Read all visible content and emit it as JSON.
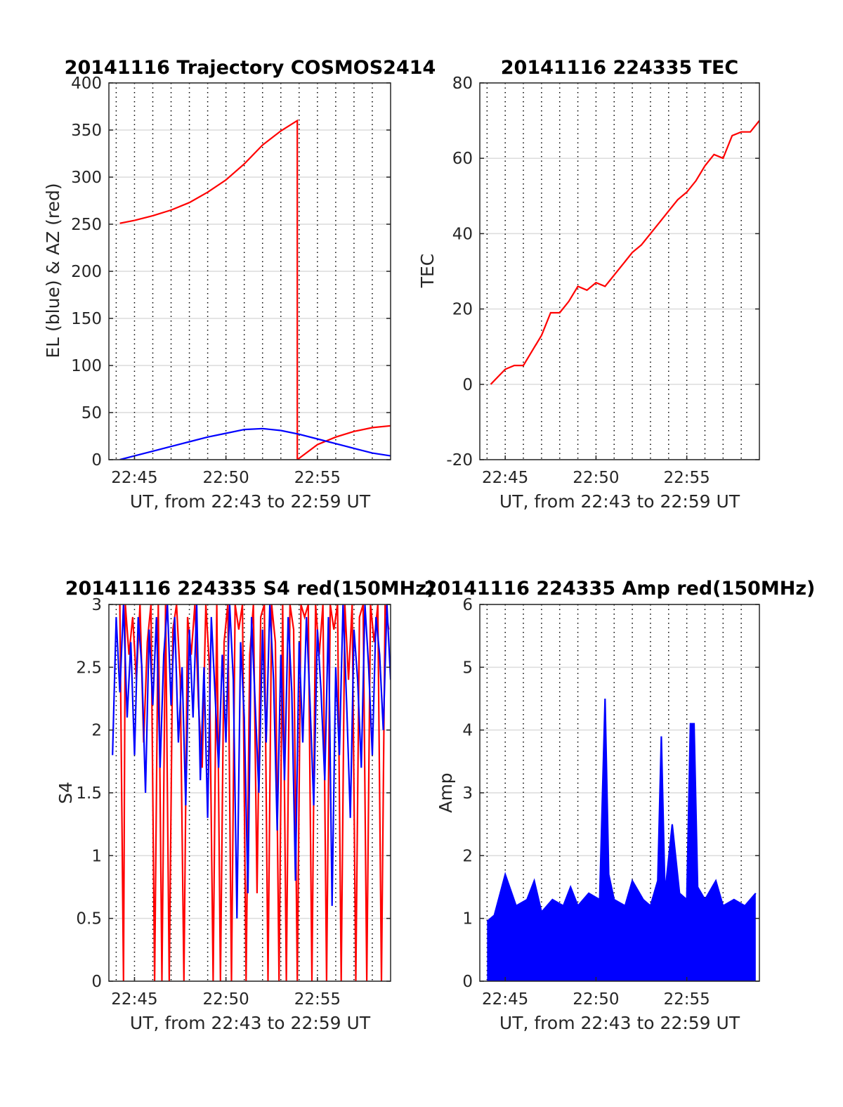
{
  "figure": {
    "background": "#ffffff"
  },
  "chart_data": [
    {
      "type": "line",
      "title": "20141116 Trajectory COSMOS2414",
      "xlabel": "UT, from 22:43 to 22:59 UT",
      "ylabel": "EL (blue) & AZ (red)",
      "x_unit": "minutes after 22:00 UT",
      "xlim": [
        43.6,
        59.0
      ],
      "ylim": [
        0,
        400
      ],
      "yticks": [
        0,
        50,
        100,
        150,
        200,
        250,
        300,
        350,
        400
      ],
      "xticks": [
        45,
        50,
        55
      ],
      "xtick_labels": [
        "22:45",
        "22:50",
        "22:55"
      ],
      "minor_grid_x": [
        44,
        45,
        46,
        47,
        48,
        49,
        50,
        51,
        52,
        53,
        54,
        55,
        56,
        57,
        58
      ],
      "series": [
        {
          "color": "#ff0000",
          "x": [
            44.2,
            45,
            46,
            47,
            48,
            49,
            50,
            51,
            52,
            53,
            53.9,
            53.9,
            55,
            56,
            57,
            58,
            59
          ],
          "values": [
            251,
            254,
            259,
            265,
            273,
            284,
            297,
            314,
            334,
            349,
            360,
            0,
            16,
            24,
            30,
            34,
            36
          ]
        },
        {
          "color": "#0000ff",
          "x": [
            44.2,
            45,
            46,
            47,
            48,
            49,
            50,
            51,
            52,
            53,
            54,
            55,
            56,
            57,
            58,
            59
          ],
          "values": [
            0,
            4,
            9,
            14,
            19,
            24,
            28,
            32,
            33,
            31,
            27,
            22,
            17,
            12,
            7,
            4
          ]
        }
      ]
    },
    {
      "type": "line",
      "title": "20141116 224335 TEC",
      "xlabel": "UT, from 22:43 to 22:59 UT",
      "ylabel": "TEC",
      "x_unit": "minutes after 22:00 UT",
      "xlim": [
        43.6,
        59.0
      ],
      "ylim": [
        -20,
        80
      ],
      "yticks": [
        -20,
        0,
        20,
        40,
        60,
        80
      ],
      "xticks": [
        45,
        50,
        55
      ],
      "xtick_labels": [
        "22:45",
        "22:50",
        "22:55"
      ],
      "minor_grid_x": [
        44,
        45,
        46,
        47,
        48,
        49,
        50,
        51,
        52,
        53,
        54,
        55,
        56,
        57,
        58
      ],
      "series": [
        {
          "color": "#ff0000",
          "x": [
            44.2,
            44.6,
            45,
            45.5,
            46,
            46.5,
            47,
            47.5,
            48,
            48.5,
            49,
            49.5,
            50,
            50.5,
            51,
            51.5,
            52,
            52.5,
            53,
            53.5,
            54,
            54.5,
            55,
            55.5,
            56,
            56.5,
            57,
            57.5,
            58,
            58.5,
            59
          ],
          "values": [
            0,
            2,
            4,
            5,
            5,
            9,
            13,
            19,
            19,
            22,
            26,
            25,
            27,
            26,
            29,
            32,
            35,
            37,
            40,
            43,
            46,
            49,
            51,
            54,
            58,
            61,
            60,
            66,
            67,
            67,
            70
          ]
        }
      ]
    },
    {
      "type": "line",
      "title": "20141116 224335 S4 red(150MHz)",
      "xlabel": "UT, from 22:43 to 22:59 UT",
      "ylabel": "S4",
      "x_unit": "minutes after 22:00 UT",
      "xlim": [
        43.6,
        59.0
      ],
      "ylim": [
        0,
        3
      ],
      "yticks": [
        0,
        0.5,
        1,
        1.5,
        2,
        2.5,
        3
      ],
      "xticks": [
        45,
        50,
        55
      ],
      "xtick_labels": [
        "22:45",
        "22:50",
        "22:55"
      ],
      "minor_grid_x": [
        44,
        45,
        46,
        47,
        48,
        49,
        50,
        51,
        52,
        53,
        54,
        55,
        56,
        57,
        58
      ],
      "series": [
        {
          "color": "#ff0000",
          "x": [
            44.2,
            44.4,
            44.5,
            44.7,
            44.9,
            45.1,
            45.3,
            45.5,
            45.7,
            45.9,
            46.1,
            46.3,
            46.5,
            46.7,
            46.9,
            47.1,
            47.3,
            47.5,
            47.7,
            47.9,
            48.1,
            48.3,
            48.5,
            48.7,
            48.9,
            49.1,
            49.3,
            49.5,
            49.7,
            49.9,
            50.1,
            50.3,
            50.5,
            50.7,
            50.9,
            51.1,
            51.3,
            51.5,
            51.7,
            51.9,
            52.1,
            52.3,
            52.5,
            52.7,
            52.9,
            53.1,
            53.3,
            53.5,
            53.7,
            53.9,
            54.1,
            54.3,
            54.5,
            54.7,
            54.9,
            55.1,
            55.3,
            55.5,
            55.7,
            55.9,
            56.1,
            56.3,
            56.5,
            56.7,
            56.9,
            57.1,
            57.3,
            57.5,
            57.7,
            57.9,
            58.1,
            58.3,
            58.5,
            58.7,
            58.9
          ],
          "values": [
            3,
            0,
            3,
            2.6,
            2.9,
            2.4,
            3,
            1.9,
            2.7,
            3,
            0,
            3,
            0,
            3,
            0,
            2.8,
            3,
            2.4,
            0,
            2.9,
            2.6,
            3,
            2.2,
            1.7,
            3,
            2.5,
            0,
            3,
            0,
            2.7,
            3,
            0,
            3,
            2.8,
            3,
            0,
            2.6,
            3,
            0.7,
            2.9,
            3,
            0,
            3,
            2.7,
            0,
            3,
            0,
            3,
            2.8,
            0,
            3,
            2.9,
            3,
            0,
            3,
            2.6,
            3,
            0,
            3,
            2.8,
            3,
            0,
            3,
            2.4,
            3,
            0,
            2.9,
            3,
            0,
            3,
            2.7,
            3,
            0,
            3,
            2.8
          ]
        },
        {
          "color": "#0000ff",
          "x": [
            43.8,
            44.0,
            44.2,
            44.4,
            44.6,
            44.8,
            45.0,
            45.2,
            45.4,
            45.6,
            45.8,
            46.0,
            46.2,
            46.4,
            46.6,
            46.8,
            47.0,
            47.2,
            47.4,
            47.6,
            47.8,
            48.0,
            48.2,
            48.4,
            48.6,
            48.8,
            49.0,
            49.2,
            49.4,
            49.6,
            49.8,
            50.0,
            50.2,
            50.4,
            50.6,
            50.8,
            51.0,
            51.2,
            51.4,
            51.6,
            51.8,
            52.0,
            52.2,
            52.4,
            52.6,
            52.8,
            53.0,
            53.2,
            53.4,
            53.6,
            53.8,
            54.0,
            54.2,
            54.4,
            54.6,
            54.8,
            55.0,
            55.2,
            55.4,
            55.6,
            55.8,
            56.0,
            56.2,
            56.4,
            56.6,
            56.8,
            57.0,
            57.2,
            57.4,
            57.6,
            57.8,
            58.0,
            58.2,
            58.4,
            58.6,
            58.8,
            59.0
          ],
          "values": [
            1.8,
            2.9,
            2.3,
            3,
            2.1,
            2.7,
            1.8,
            2.9,
            2.5,
            1.5,
            2.8,
            2.2,
            2.9,
            1.7,
            2.6,
            3,
            2.2,
            2.9,
            1.9,
            2.5,
            1.4,
            2.8,
            2.1,
            3,
            1.6,
            2.5,
            1.3,
            2.9,
            2.3,
            1.7,
            2.6,
            1.9,
            3,
            2.4,
            0.5,
            2.7,
            2.1,
            0.7,
            2.9,
            2.2,
            1.5,
            2.8,
            1.9,
            3,
            2.4,
            1.2,
            2.6,
            1.6,
            2.9,
            2.3,
            0.8,
            2.7,
            1.9,
            2.9,
            2.2,
            1.4,
            2.8,
            2.3,
            1.6,
            2.9,
            0.6,
            2.5,
            1.8,
            3,
            2.2,
            1.3,
            2.8,
            2.4,
            1.7,
            3,
            2.5,
            1.8,
            2.9,
            2.6,
            2.0,
            3,
            2.4
          ]
        }
      ]
    },
    {
      "type": "line",
      "title": "20141116 224335 Amp red(150MHz)",
      "xlabel": "UT, from 22:43 to 22:59 UT",
      "ylabel": "Amp",
      "x_unit": "minutes after 22:00 UT",
      "xlim": [
        43.6,
        59.0
      ],
      "ylim": [
        0,
        6
      ],
      "yticks": [
        0,
        1,
        2,
        3,
        4,
        5,
        6
      ],
      "xticks": [
        45,
        50,
        55
      ],
      "xtick_labels": [
        "22:45",
        "22:50",
        "22:55"
      ],
      "minor_grid_x": [
        44,
        45,
        46,
        47,
        48,
        49,
        50,
        51,
        52,
        53,
        54,
        55,
        56,
        57,
        58
      ],
      "series": [
        {
          "color": "#0000ff",
          "x": [
            44.0,
            44.4,
            45.0,
            45.6,
            46.2,
            46.6,
            47.0,
            47.6,
            48.2,
            48.6,
            49.0,
            49.6,
            50.2,
            50.5,
            50.7,
            51.0,
            51.6,
            52.0,
            52.6,
            53.0,
            53.4,
            53.6,
            53.8,
            54.2,
            54.6,
            55.0,
            55.2,
            55.4,
            55.6,
            56.0,
            56.6,
            57.0,
            57.6,
            58.2,
            58.8
          ],
          "values": [
            0.95,
            1.05,
            1.7,
            1.2,
            1.3,
            1.6,
            1.1,
            1.3,
            1.2,
            1.5,
            1.2,
            1.4,
            1.3,
            4.5,
            1.7,
            1.3,
            1.2,
            1.6,
            1.3,
            1.2,
            1.6,
            3.9,
            1.4,
            2.5,
            1.4,
            1.3,
            4.1,
            4.1,
            1.5,
            1.3,
            1.6,
            1.2,
            1.3,
            1.2,
            1.4
          ]
        }
      ]
    }
  ]
}
